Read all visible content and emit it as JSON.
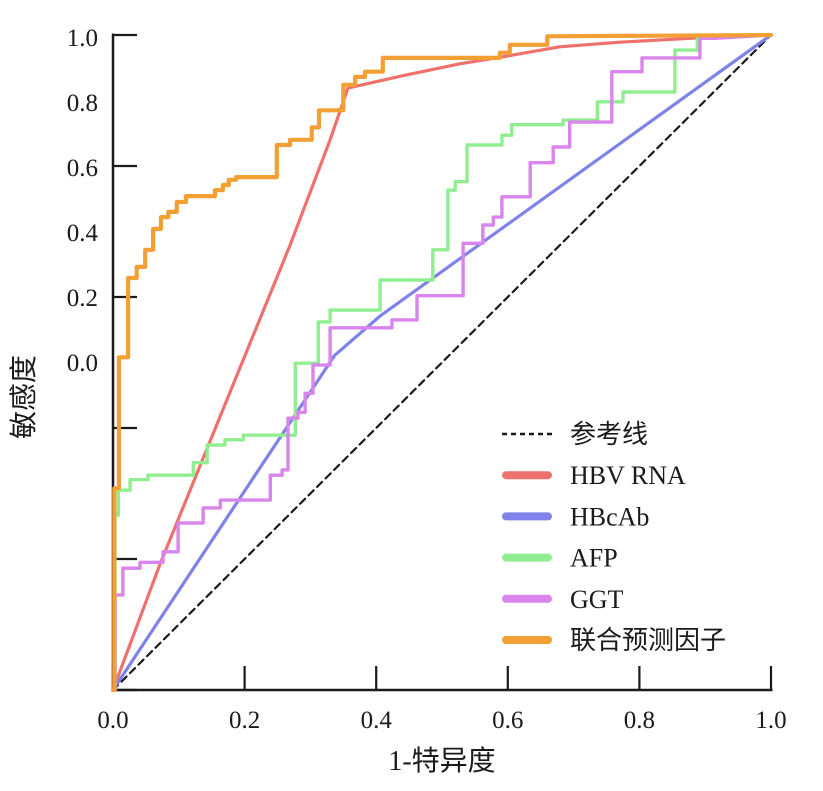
{
  "chart_data": {
    "type": "line",
    "title": "",
    "xlabel": "1-特异度",
    "ylabel": "敏感度",
    "xlim": [
      0,
      1
    ],
    "ylim": [
      0,
      1
    ],
    "grid": false,
    "legend_position": "inside-lower-right",
    "x_tick_labels": [
      "0.0",
      "0.2",
      "0.4",
      "0.6",
      "0.8",
      "1.0"
    ],
    "y_tick_labels": [
      "1.0",
      "0.8",
      "0.6",
      "0.4",
      "0.2",
      "0.0"
    ],
    "axis_color": "#1a1a1a",
    "series": [
      {
        "id": "reference-line",
        "name": "参考线",
        "color": "#1a1a1a",
        "dashed": true,
        "width": 2.2,
        "points": [
          [
            0,
            0
          ],
          [
            1,
            1
          ]
        ]
      },
      {
        "id": "hbv-rna",
        "name": "HBV RNA",
        "color": "#ef716d",
        "dashed": false,
        "width": 3.2,
        "points": [
          [
            0,
            0
          ],
          [
            0.071,
            0.191
          ],
          [
            0.178,
            0.455
          ],
          [
            0.269,
            0.679
          ],
          [
            0.33,
            0.84
          ],
          [
            0.357,
            0.919
          ],
          [
            0.436,
            0.937
          ],
          [
            0.527,
            0.956
          ],
          [
            0.588,
            0.966
          ],
          [
            0.679,
            0.982
          ],
          [
            0.77,
            0.989
          ],
          [
            0.877,
            0.995
          ],
          [
            1,
            1
          ]
        ]
      },
      {
        "id": "hbcab",
        "name": "HBcAb",
        "color": "#7e82e9",
        "dashed": false,
        "width": 3.2,
        "points": [
          [
            0,
            0
          ],
          [
            0.208,
            0.316
          ],
          [
            0.337,
            0.511
          ],
          [
            0.406,
            0.571
          ],
          [
            1,
            1
          ]
        ]
      },
      {
        "id": "afp",
        "name": "AFP",
        "color": "#90ee90",
        "dashed": false,
        "width": 3.4,
        "points": [
          [
            0,
            0
          ],
          [
            0.003,
            0
          ],
          [
            0.003,
            0.267
          ],
          [
            0.008,
            0.267
          ],
          [
            0.008,
            0.305
          ],
          [
            0.026,
            0.305
          ],
          [
            0.026,
            0.321
          ],
          [
            0.053,
            0.321
          ],
          [
            0.053,
            0.328
          ],
          [
            0.122,
            0.328
          ],
          [
            0.122,
            0.347
          ],
          [
            0.143,
            0.347
          ],
          [
            0.143,
            0.374
          ],
          [
            0.17,
            0.374
          ],
          [
            0.17,
            0.382
          ],
          [
            0.198,
            0.382
          ],
          [
            0.198,
            0.389
          ],
          [
            0.277,
            0.389
          ],
          [
            0.277,
            0.499
          ],
          [
            0.312,
            0.499
          ],
          [
            0.312,
            0.562
          ],
          [
            0.33,
            0.562
          ],
          [
            0.33,
            0.58
          ],
          [
            0.406,
            0.58
          ],
          [
            0.406,
            0.626
          ],
          [
            0.486,
            0.626
          ],
          [
            0.486,
            0.672
          ],
          [
            0.509,
            0.672
          ],
          [
            0.509,
            0.763
          ],
          [
            0.52,
            0.763
          ],
          [
            0.52,
            0.776
          ],
          [
            0.538,
            0.776
          ],
          [
            0.538,
            0.832
          ],
          [
            0.591,
            0.832
          ],
          [
            0.591,
            0.847
          ],
          [
            0.606,
            0.847
          ],
          [
            0.606,
            0.863
          ],
          [
            0.684,
            0.863
          ],
          [
            0.684,
            0.87
          ],
          [
            0.736,
            0.87
          ],
          [
            0.736,
            0.898
          ],
          [
            0.775,
            0.898
          ],
          [
            0.775,
            0.913
          ],
          [
            0.854,
            0.913
          ],
          [
            0.854,
            0.977
          ],
          [
            0.888,
            0.977
          ],
          [
            0.888,
            0.997
          ],
          [
            0.945,
            0.997
          ],
          [
            1,
            1
          ]
        ]
      },
      {
        "id": "ggt",
        "name": "GGT",
        "color": "#d985ec",
        "dashed": false,
        "width": 3.4,
        "points": [
          [
            0,
            0
          ],
          [
            0.003,
            0
          ],
          [
            0.003,
            0.145
          ],
          [
            0.015,
            0.145
          ],
          [
            0.015,
            0.186
          ],
          [
            0.041,
            0.186
          ],
          [
            0.041,
            0.195
          ],
          [
            0.076,
            0.195
          ],
          [
            0.076,
            0.211
          ],
          [
            0.099,
            0.211
          ],
          [
            0.099,
            0.255
          ],
          [
            0.137,
            0.255
          ],
          [
            0.137,
            0.278
          ],
          [
            0.163,
            0.278
          ],
          [
            0.163,
            0.29
          ],
          [
            0.239,
            0.29
          ],
          [
            0.239,
            0.328
          ],
          [
            0.257,
            0.328
          ],
          [
            0.257,
            0.336
          ],
          [
            0.266,
            0.336
          ],
          [
            0.266,
            0.415
          ],
          [
            0.281,
            0.415
          ],
          [
            0.281,
            0.424
          ],
          [
            0.292,
            0.424
          ],
          [
            0.292,
            0.453
          ],
          [
            0.304,
            0.453
          ],
          [
            0.304,
            0.496
          ],
          [
            0.33,
            0.496
          ],
          [
            0.33,
            0.553
          ],
          [
            0.424,
            0.553
          ],
          [
            0.424,
            0.565
          ],
          [
            0.462,
            0.565
          ],
          [
            0.462,
            0.602
          ],
          [
            0.532,
            0.602
          ],
          [
            0.532,
            0.682
          ],
          [
            0.562,
            0.682
          ],
          [
            0.562,
            0.71
          ],
          [
            0.578,
            0.71
          ],
          [
            0.578,
            0.722
          ],
          [
            0.591,
            0.722
          ],
          [
            0.591,
            0.753
          ],
          [
            0.634,
            0.753
          ],
          [
            0.634,
            0.805
          ],
          [
            0.669,
            0.805
          ],
          [
            0.669,
            0.829
          ],
          [
            0.694,
            0.829
          ],
          [
            0.694,
            0.867
          ],
          [
            0.758,
            0.867
          ],
          [
            0.758,
            0.944
          ],
          [
            0.804,
            0.944
          ],
          [
            0.804,
            0.965
          ],
          [
            0.892,
            0.965
          ],
          [
            0.892,
            0.995
          ],
          [
            0.915,
            0.995
          ],
          [
            1,
            1
          ]
        ]
      },
      {
        "id": "combined-predictor",
        "name": "联合预测因子",
        "color": "#f49f33",
        "dashed": false,
        "width": 4.2,
        "points": [
          [
            0,
            0
          ],
          [
            0.002,
            0
          ],
          [
            0.002,
            0.308
          ],
          [
            0.009,
            0.308
          ],
          [
            0.009,
            0.508
          ],
          [
            0.023,
            0.508
          ],
          [
            0.023,
            0.629
          ],
          [
            0.036,
            0.629
          ],
          [
            0.036,
            0.646
          ],
          [
            0.049,
            0.646
          ],
          [
            0.049,
            0.672
          ],
          [
            0.061,
            0.672
          ],
          [
            0.061,
            0.704
          ],
          [
            0.073,
            0.704
          ],
          [
            0.073,
            0.722
          ],
          [
            0.084,
            0.722
          ],
          [
            0.084,
            0.73
          ],
          [
            0.097,
            0.73
          ],
          [
            0.097,
            0.745
          ],
          [
            0.111,
            0.745
          ],
          [
            0.111,
            0.754
          ],
          [
            0.155,
            0.754
          ],
          [
            0.155,
            0.763
          ],
          [
            0.167,
            0.763
          ],
          [
            0.167,
            0.771
          ],
          [
            0.176,
            0.771
          ],
          [
            0.176,
            0.779
          ],
          [
            0.187,
            0.779
          ],
          [
            0.187,
            0.783
          ],
          [
            0.249,
            0.783
          ],
          [
            0.249,
            0.832
          ],
          [
            0.269,
            0.832
          ],
          [
            0.269,
            0.84
          ],
          [
            0.302,
            0.84
          ],
          [
            0.302,
            0.859
          ],
          [
            0.313,
            0.859
          ],
          [
            0.313,
            0.885
          ],
          [
            0.35,
            0.885
          ],
          [
            0.35,
            0.924
          ],
          [
            0.368,
            0.924
          ],
          [
            0.368,
            0.936
          ],
          [
            0.383,
            0.936
          ],
          [
            0.383,
            0.944
          ],
          [
            0.41,
            0.944
          ],
          [
            0.41,
            0.965
          ],
          [
            0.588,
            0.965
          ],
          [
            0.588,
            0.973
          ],
          [
            0.603,
            0.973
          ],
          [
            0.603,
            0.985
          ],
          [
            0.66,
            0.985
          ],
          [
            0.66,
            0.998
          ],
          [
            1,
            1
          ]
        ]
      }
    ]
  }
}
